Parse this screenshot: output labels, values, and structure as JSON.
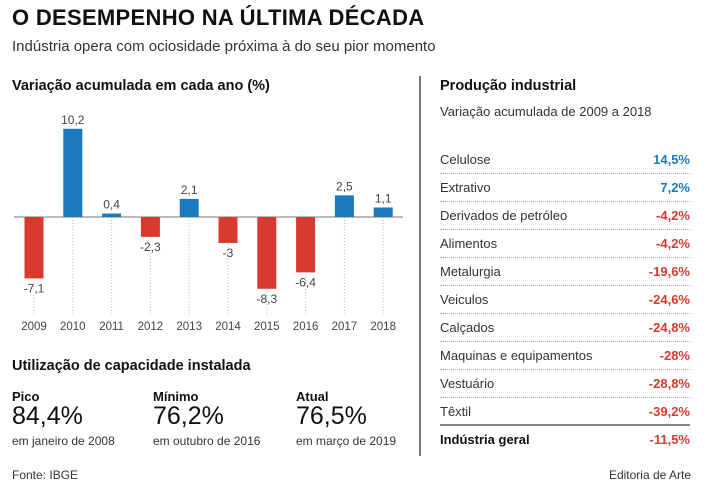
{
  "header": {
    "title": "O DESEMPENHO NA ÚLTIMA DÉCADA",
    "subtitle": "Indústria opera com ociosidade próxima à do seu pior momento"
  },
  "colors": {
    "positive": "#1b79bd",
    "negative": "#d93a2f"
  },
  "chart_data": {
    "type": "bar",
    "title": "Variação acumulada em cada ano (%)",
    "categories": [
      "2009",
      "2010",
      "2011",
      "2012",
      "2013",
      "2014",
      "2015",
      "2016",
      "2017",
      "2018"
    ],
    "values": [
      -7.1,
      10.2,
      0.4,
      -2.3,
      2.1,
      -3,
      -8.3,
      -6.4,
      2.5,
      1.1
    ],
    "labels": [
      "-7,1",
      "10,2",
      "0,4",
      "-2,3",
      "2,1",
      "-3",
      "-8,3",
      "-6,4",
      "2,5",
      "1,1"
    ],
    "xlabel": "",
    "ylabel": "",
    "grid": false
  },
  "production": {
    "title": "Produção industrial",
    "subtitle": "Variação acumulada de 2009 a 2018",
    "rows": [
      {
        "label": "Celulose",
        "value": "14,5%",
        "positive": true
      },
      {
        "label": "Extrativo",
        "value": "7,2%",
        "positive": true
      },
      {
        "label": "Derivados de petróleo",
        "value": "-4,2%",
        "positive": false
      },
      {
        "label": "Alimentos",
        "value": "-4,2%",
        "positive": false
      },
      {
        "label": "Metalurgia",
        "value": "-19,6%",
        "positive": false
      },
      {
        "label": "Veiculos",
        "value": "-24,6%",
        "positive": false
      },
      {
        "label": "Calçados",
        "value": "-24,8%",
        "positive": false
      },
      {
        "label": "Maquinas e equipamentos",
        "value": "-28%",
        "positive": false
      },
      {
        "label": "Vestuário",
        "value": "-28,8%",
        "positive": false
      },
      {
        "label": "Têxtil",
        "value": "-39,2%",
        "positive": false
      }
    ],
    "total": {
      "label": "Indústria geral",
      "value": "-11,5%"
    }
  },
  "capacity": {
    "title": "Utilização de capacidade instalada",
    "items": [
      {
        "label": "Pico",
        "value": "84,4%",
        "note": "em janeiro de 2008"
      },
      {
        "label": "Mínimo",
        "value": "76,2%",
        "note": "em outubro de 2016"
      },
      {
        "label": "Atual",
        "value": "76,5%",
        "note": "em março de 2019"
      }
    ]
  },
  "footer": {
    "source": "Fonte: IBGE",
    "credit": "Editoria de Arte"
  }
}
